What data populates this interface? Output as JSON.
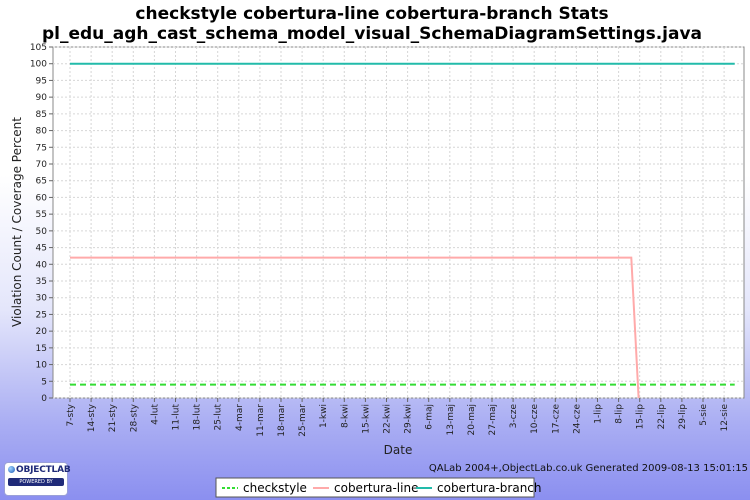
{
  "chart_data": {
    "type": "line",
    "title_line1": "checkstyle cobertura-line cobertura-branch  Stats",
    "title_line2": "pl_edu_agh_cast_schema_model_visual_SchemaDiagramSettings.java",
    "xlabel": "Date",
    "ylabel": "Violation Count / Coverage Percent",
    "ylim": [
      0,
      105
    ],
    "y_ticks": [
      0,
      5,
      10,
      15,
      20,
      25,
      30,
      35,
      40,
      45,
      50,
      55,
      60,
      65,
      70,
      75,
      80,
      85,
      90,
      95,
      100,
      105
    ],
    "categories": [
      "7-sty",
      "14-sty",
      "21-sty",
      "28-sty",
      "4-lut",
      "11-lut",
      "18-lut",
      "25-lut",
      "4-mar",
      "11-mar",
      "18-mar",
      "25-mar",
      "1-kwi",
      "8-kwi",
      "15-kwi",
      "22-kwi",
      "29-kwi",
      "6-maj",
      "13-maj",
      "20-maj",
      "27-maj",
      "3-cze",
      "10-cze",
      "17-cze",
      "24-cze",
      "1-lip",
      "8-lip",
      "15-lip",
      "22-lip",
      "29-lip",
      "5-sie",
      "12-sie"
    ],
    "grid": true,
    "legend_placement": "bottom",
    "series": [
      {
        "name": "checkstyle",
        "color": "#33dd33",
        "style": "dashed",
        "points": [
          [
            0,
            4
          ],
          [
            31.5,
            4
          ]
        ]
      },
      {
        "name": "cobertura-line",
        "color": "#ffaaaa",
        "style": "solid",
        "points": [
          [
            0,
            42
          ],
          [
            26.6,
            42
          ],
          [
            26.95,
            0
          ]
        ]
      },
      {
        "name": "cobertura-branch",
        "color": "#22bbaa",
        "style": "solid",
        "points": [
          [
            0,
            100
          ],
          [
            31.5,
            100
          ]
        ]
      }
    ]
  },
  "footer": {
    "credit": "QALab 2004+,ObjectLab.co.uk Generated 2009-08-13 15:01:15"
  },
  "logo": {
    "text": "OBJECTLAB",
    "sub": "POWERED BY"
  }
}
